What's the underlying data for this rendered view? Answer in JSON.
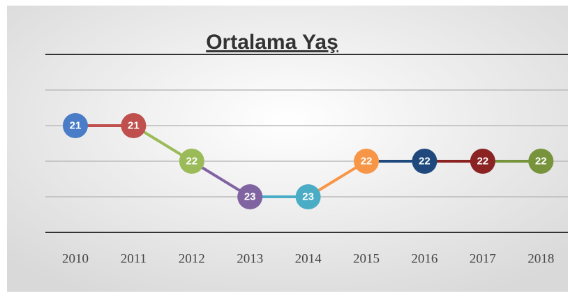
{
  "chart_data": {
    "type": "line",
    "title": "Ortalama Yaş",
    "categories": [
      "2010",
      "2011",
      "2012",
      "2013",
      "2014",
      "2015",
      "2016",
      "2017",
      "2018"
    ],
    "values": [
      21,
      21,
      22,
      23,
      23,
      22,
      22,
      22,
      22
    ],
    "colors": [
      "#4a7cc7",
      "#c0504d",
      "#9bbb59",
      "#8064a2",
      "#4bacc6",
      "#f79646",
      "#1f497d",
      "#8b2323",
      "#77933c"
    ],
    "ylim": [
      19,
      24
    ],
    "yticks": [
      19,
      20,
      21,
      22,
      23,
      24
    ],
    "y_inverted": true,
    "grid": true
  }
}
